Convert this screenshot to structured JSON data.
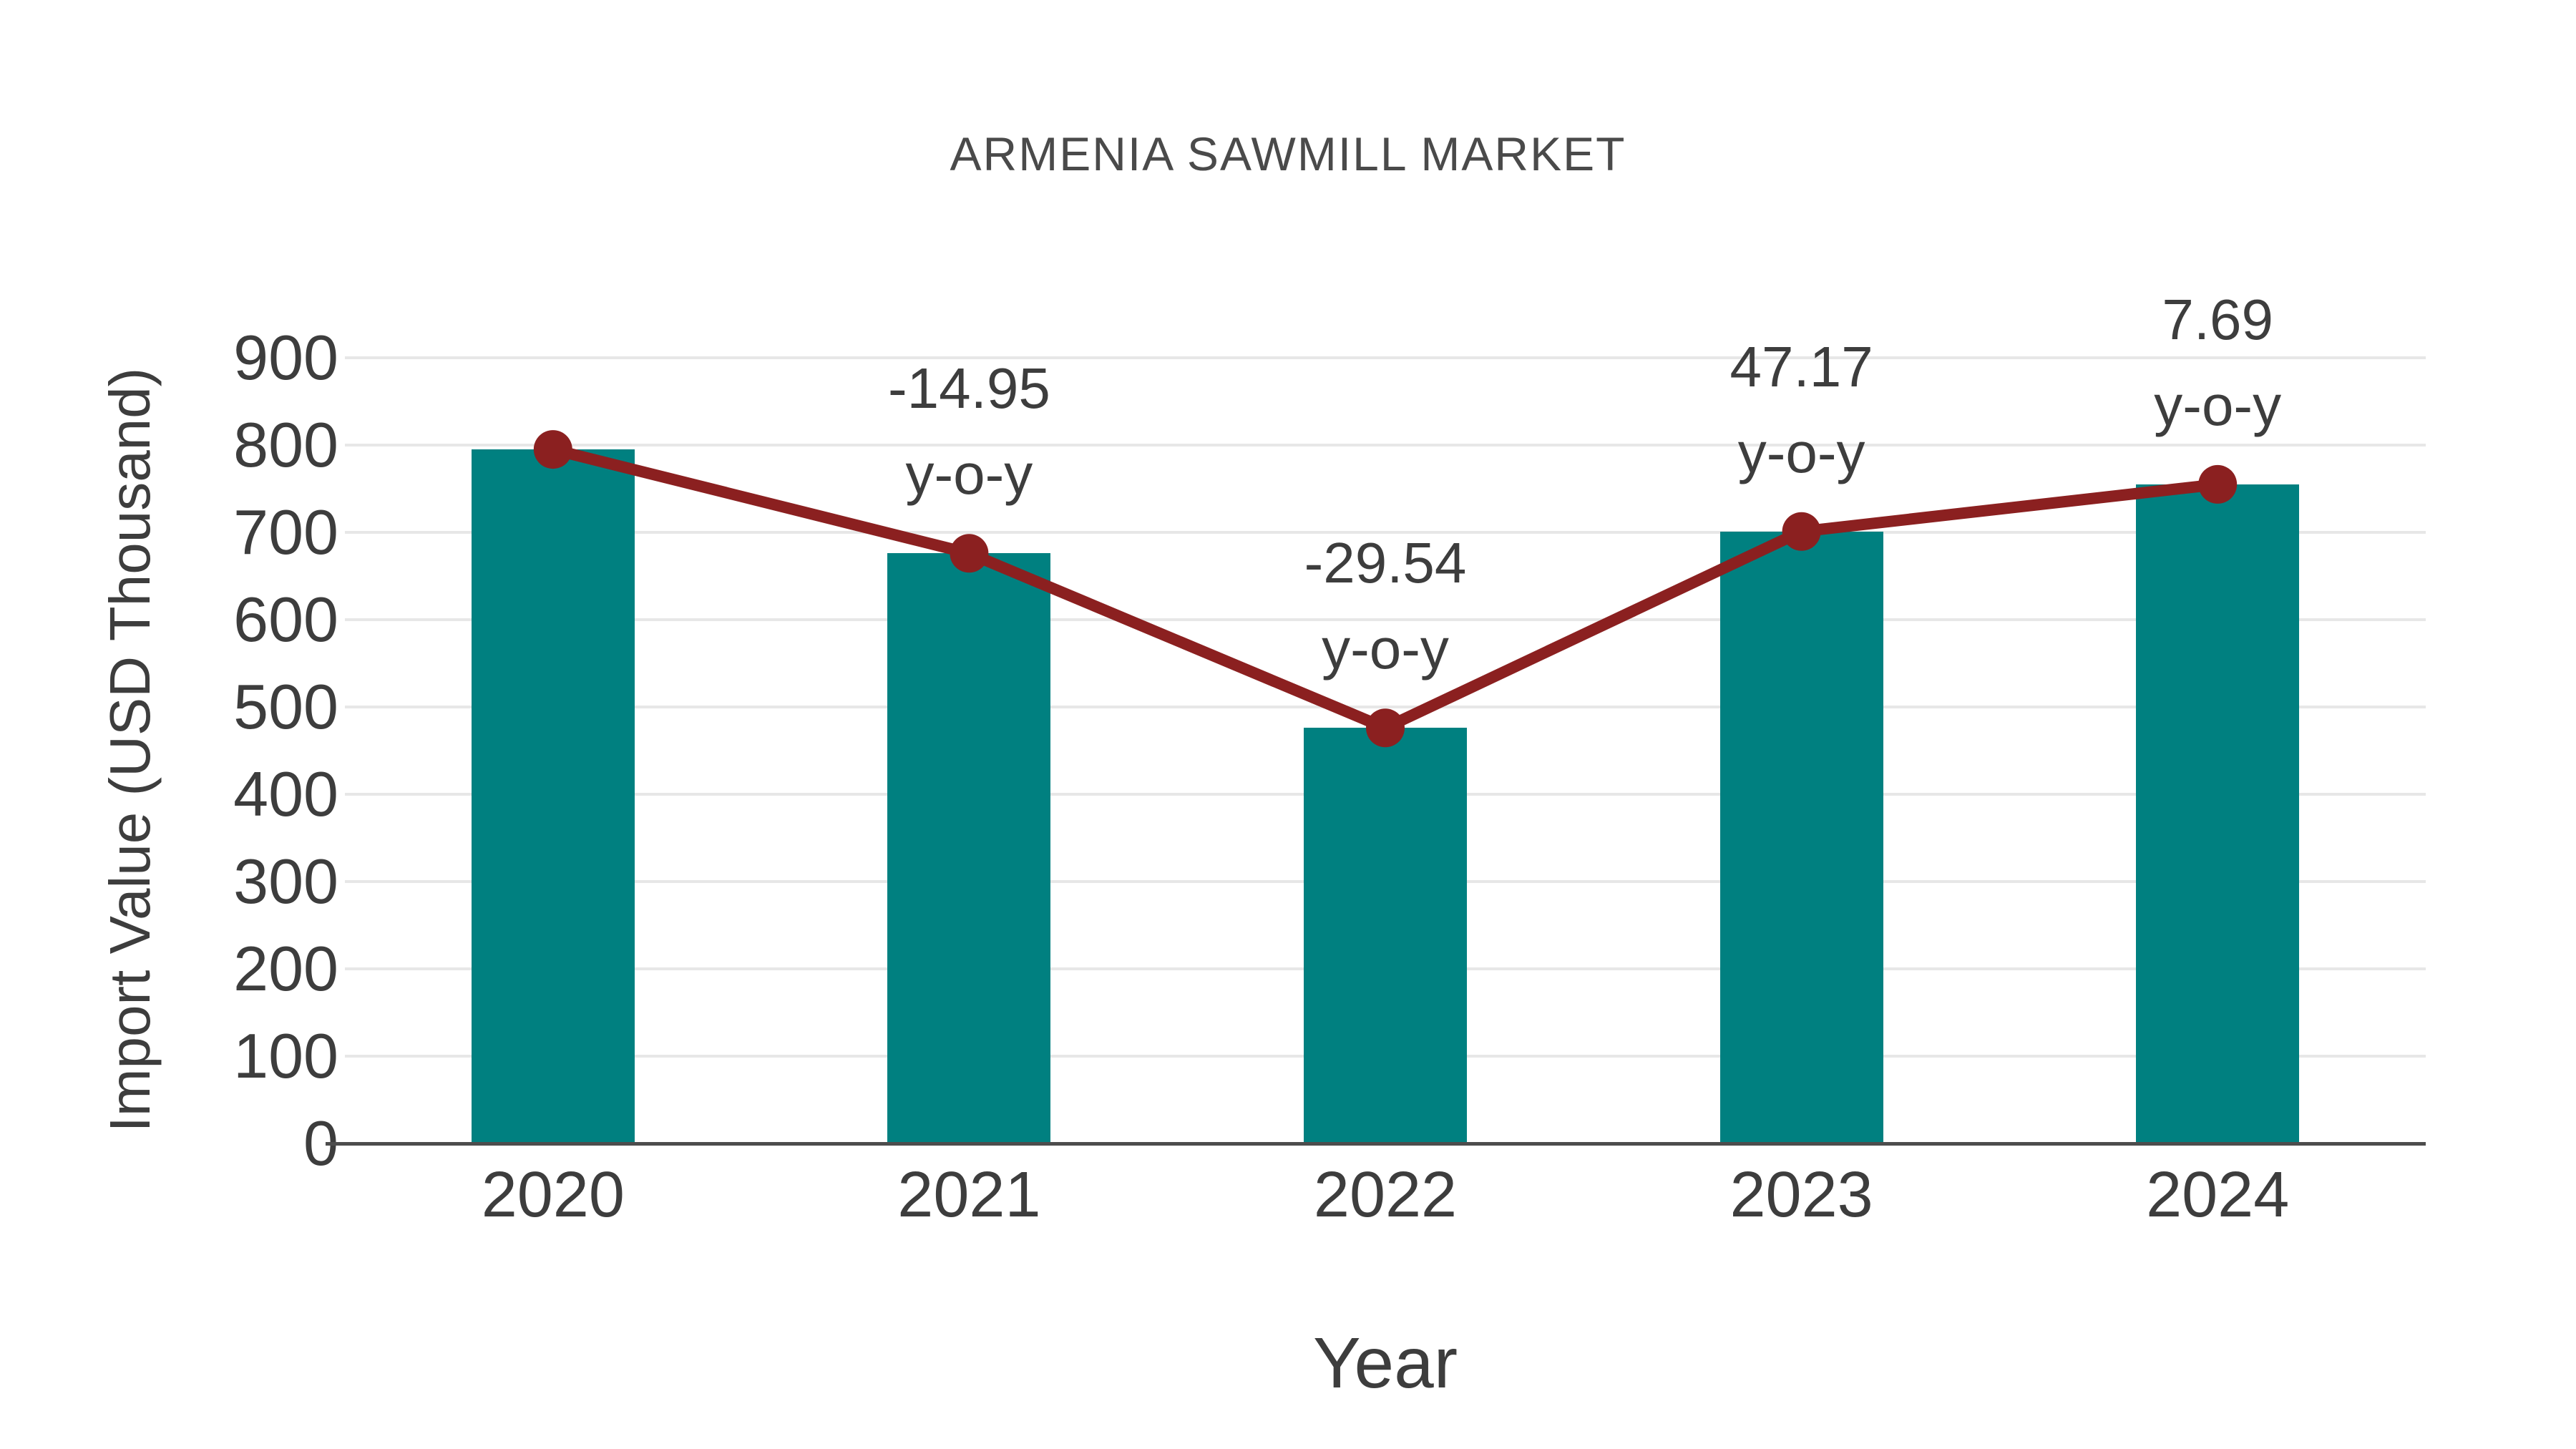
{
  "page": {
    "background": "#ffffff"
  },
  "chart_data": {
    "type": "bar",
    "title": "ARMENIA SAWMILL MARKET",
    "xlabel": "Year",
    "ylabel": "Import Value (USD Thousand)",
    "categories": [
      "2020",
      "2021",
      "2022",
      "2023",
      "2024"
    ],
    "series": [
      {
        "name": "Import Value (USD Thousand)",
        "type": "bar",
        "values": [
          795,
          676,
          476,
          701,
          755
        ]
      },
      {
        "name": "y-o-y trend line",
        "type": "line",
        "values": [
          795,
          676,
          476,
          701,
          755
        ]
      }
    ],
    "annotations": [
      {
        "category": "2021",
        "yoy": -14.95,
        "line1": "-14.95",
        "line2": "y-o-y"
      },
      {
        "category": "2022",
        "yoy": -29.54,
        "line1": "-29.54",
        "line2": "y-o-y"
      },
      {
        "category": "2023",
        "yoy": 47.17,
        "line1": "47.17",
        "line2": "y-o-y"
      },
      {
        "category": "2024",
        "yoy": 7.69,
        "line1": "7.69",
        "line2": "y-o-y"
      }
    ],
    "ylim": [
      0,
      900
    ],
    "yticks": [
      0,
      100,
      200,
      300,
      400,
      500,
      600,
      700,
      800,
      900
    ],
    "grid": "horizontal",
    "legend": "none",
    "colors": {
      "bar": "#008080",
      "line": "#8b2020",
      "grid": "#e7e7e7",
      "axis": "#4d4d4d",
      "text": "#3d3d3d",
      "title": "#4a4a4a",
      "background": "#ffffff"
    }
  }
}
